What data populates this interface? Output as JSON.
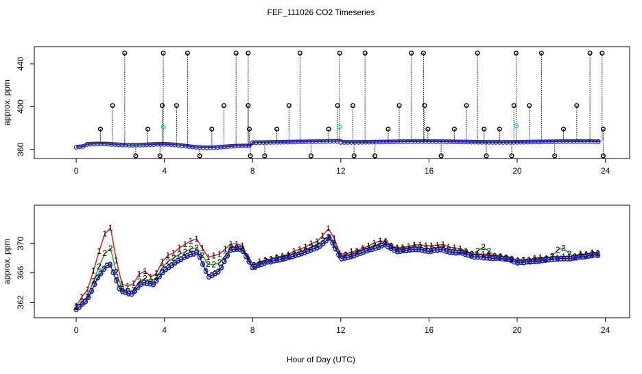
{
  "title": "FEF_111026  CO2 Timeseries",
  "xlabel": "Hour of Day (UTC)",
  "colors": {
    "axis": "#000000",
    "series1": "#e8161b",
    "series2": "#1aa81a",
    "series3": "#1a1adf",
    "marker_black": "#000000",
    "marker_cyan": "#22c8d8"
  },
  "chart_data": [
    {
      "type": "scatter",
      "panel": "top",
      "ylabel": "approx. ppm",
      "xlim": [
        -1.9,
        25.1
      ],
      "ylim": [
        351.5,
        456
      ],
      "x_ticks": [
        0,
        4,
        8,
        12,
        16,
        20,
        24
      ],
      "y_ticks": [
        360,
        400,
        440
      ],
      "x_tick_labels": [
        "0",
        "4",
        "8",
        "12",
        "16",
        "20",
        "24"
      ],
      "y_tick_labels": [
        "360",
        "400",
        "440"
      ],
      "baseline_ppm": 367,
      "high_spike_value": 450,
      "low_spike_value": 354,
      "spikes_high_x": [
        2.2,
        3.95,
        5.05,
        7.25,
        7.8,
        10.15,
        11.95,
        13.1,
        15.2,
        15.75,
        18.2,
        19.95,
        21.1,
        23.3,
        23.85
      ],
      "spikes_mid_x": [
        1.65,
        3.9,
        4.55,
        6.7,
        7.8,
        9.65,
        11.85,
        12.55,
        14.65,
        15.8,
        17.7,
        19.85,
        20.55,
        22.7
      ],
      "spikes_low_x": [
        1.1,
        3.25,
        6.15,
        7.85,
        9.1,
        11.45,
        14.15,
        15.95,
        17.15,
        18.5,
        19.2,
        22.1,
        23.9
      ],
      "spikes_bottom_x": [
        2.7,
        3.8,
        5.6,
        7.9,
        8.55,
        10.65,
        12.6,
        13.55,
        16.55,
        18.6,
        19.75,
        21.7,
        23.9
      ],
      "cyan_markers": [
        {
          "x": 3.95,
          "y": 381
        },
        {
          "x": 11.95,
          "y": 381
        },
        {
          "x": 19.95,
          "y": 382
        }
      ],
      "series": [
        {
          "name": "1"
        },
        {
          "name": "2"
        },
        {
          "name": "3"
        }
      ]
    },
    {
      "type": "line",
      "panel": "bottom",
      "ylabel": "approx. ppm",
      "xlim": [
        -1.9,
        25.1
      ],
      "ylim": [
        359.9,
        375.2
      ],
      "x_ticks": [
        0,
        4,
        8,
        12,
        16,
        20,
        24
      ],
      "y_ticks": [
        362,
        366,
        370
      ],
      "x_tick_labels": [
        "0",
        "4",
        "8",
        "12",
        "16",
        "20",
        "24"
      ],
      "y_tick_labels": [
        "362",
        "366",
        "370"
      ],
      "x": [
        0,
        0.5,
        1.0,
        1.5,
        2.0,
        2.5,
        3.0,
        3.5,
        4.0,
        4.5,
        5.0,
        5.5,
        6.0,
        6.5,
        7.0,
        7.5,
        8.0,
        8.5,
        9.0,
        9.5,
        10.0,
        10.5,
        11.0,
        11.5,
        12.0,
        12.5,
        13.0,
        13.5,
        14.0,
        14.5,
        15.0,
        15.5,
        16.0,
        16.5,
        17.0,
        17.5,
        18.0,
        18.5,
        19.0,
        19.5,
        20.0,
        20.5,
        21.0,
        21.5,
        22.0,
        22.5,
        23.0,
        23.5
      ],
      "series": [
        {
          "name": "1",
          "values": [
            361.6,
            363.6,
            368.5,
            373.2,
            364.5,
            364.0,
            366.5,
            365.2,
            368.0,
            369.0,
            370.0,
            370.6,
            368.0,
            368.5,
            369.9,
            369.8,
            367.0,
            367.7,
            368.1,
            368.4,
            369.0,
            369.6,
            370.5,
            372.2,
            368.4,
            368.8,
            369.4,
            370.0,
            370.4,
            369.4,
            369.6,
            369.9,
            369.6,
            369.9,
            369.4,
            369.2,
            368.5,
            368.5,
            368.3,
            368.1,
            367.7,
            367.8,
            368.0,
            368.1,
            368.2,
            368.3,
            368.5,
            368.8
          ]
        },
        {
          "name": "2",
          "values": [
            361.3,
            362.7,
            366.5,
            370.0,
            363.8,
            363.3,
            365.5,
            364.7,
            367.2,
            368.2,
            369.0,
            369.5,
            367.0,
            367.4,
            369.4,
            369.4,
            366.9,
            367.5,
            367.9,
            368.2,
            368.7,
            369.2,
            370.0,
            371.0,
            368.2,
            368.5,
            369.1,
            369.6,
            370.1,
            369.1,
            369.3,
            369.5,
            369.2,
            369.5,
            369.1,
            368.9,
            368.5,
            369.6,
            368.2,
            368.0,
            367.6,
            367.7,
            367.8,
            368.0,
            369.6,
            368.2,
            368.4,
            368.6
          ]
        },
        {
          "name": "3",
          "values": [
            361.0,
            362.3,
            365.5,
            367.4,
            363.6,
            363.0,
            364.7,
            364.4,
            366.4,
            367.4,
            368.3,
            368.8,
            365.4,
            366.3,
            369.1,
            369.3,
            366.7,
            367.3,
            367.7,
            368.0,
            368.4,
            368.9,
            369.5,
            370.8,
            367.9,
            368.2,
            368.8,
            369.3,
            369.8,
            368.9,
            369.1,
            369.2,
            368.9,
            369.2,
            368.8,
            368.7,
            368.2,
            368.1,
            368.0,
            367.9,
            367.4,
            367.5,
            367.6,
            367.8,
            367.9,
            368.0,
            368.2,
            368.4
          ]
        }
      ]
    }
  ]
}
